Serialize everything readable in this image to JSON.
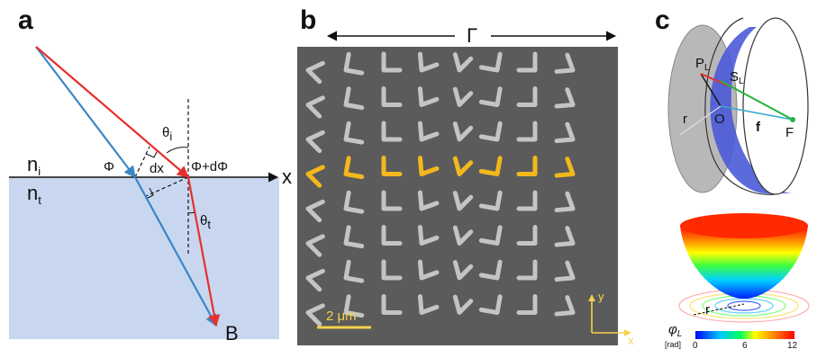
{
  "panels": {
    "a": {
      "letter": "a",
      "labels": {
        "ni": "n",
        "ni_sub": "i",
        "nt": "n",
        "nt_sub": "t",
        "phi": "Φ",
        "phi_dphi": "Φ+dΦ",
        "dx": "dx",
        "theta_i": "θ",
        "theta_i_sub": "i",
        "theta_t": "θ",
        "theta_t_sub": "t",
        "x_axis": "x",
        "point_b": "B"
      },
      "colors": {
        "substrate": "#c8d7ef",
        "incident_ray": "#e8302e",
        "reference_ray": "#3a86c8"
      }
    },
    "b": {
      "letter": "b",
      "period_label": "Γ",
      "scale_bar": "2 μm",
      "axis_y": "y",
      "axis_x": "x",
      "colors": {
        "background": "#5b5b5b",
        "antenna": "#c4c4c4",
        "highlight": "#f2b81d",
        "scale": "#f5d24a"
      }
    },
    "c": {
      "letter": "c",
      "labels": {
        "P": "P",
        "P_sub": "L",
        "S": "S",
        "S_sub": "L",
        "O": "O",
        "f": "f",
        "F": "F",
        "r_top": "r",
        "r_bottom": "r",
        "phi_L": "φ",
        "phi_L_sub": "L",
        "rad": "[rad]",
        "colorbar_ticks": [
          "0",
          "6",
          "12"
        ]
      },
      "colors": {
        "lens_blue": "#4a5ad8",
        "disk_gray": "#b0b0b0",
        "green_line": "#26b43c"
      }
    }
  }
}
